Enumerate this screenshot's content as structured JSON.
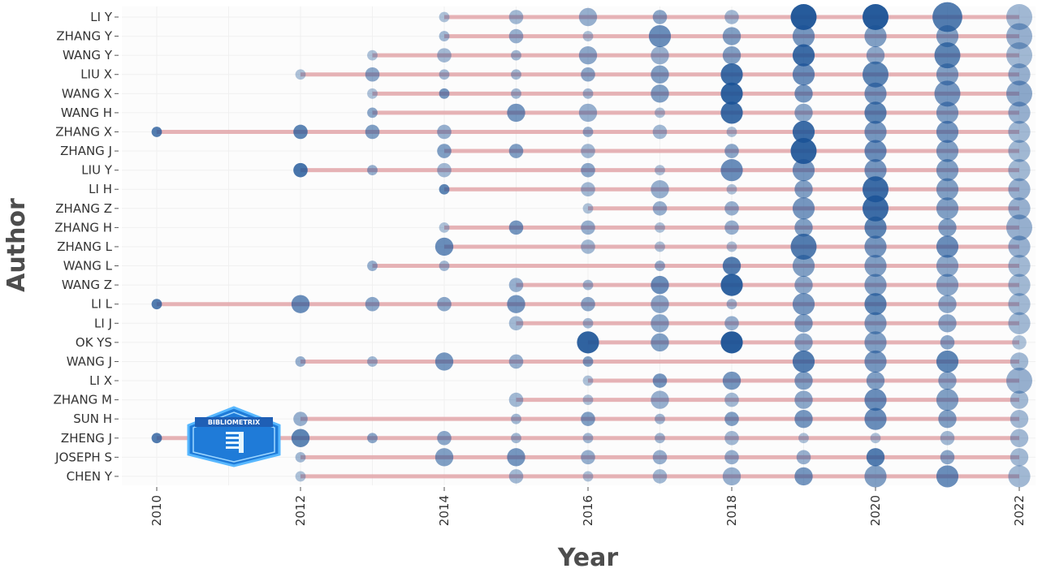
{
  "chart_data": {
    "type": "scatter",
    "title": "",
    "xlabel": "Year",
    "ylabel": "Author",
    "xlim": [
      2010,
      2022
    ],
    "x_ticks": [
      2010,
      2012,
      2014,
      2016,
      2018,
      2020,
      2022
    ],
    "authors": [
      "LI Y",
      "ZHANG Y",
      "WANG Y",
      "LIU X",
      "WANG X",
      "WANG H",
      "ZHANG X",
      "ZHANG J",
      "LIU Y",
      "LI H",
      "ZHANG Z",
      "ZHANG H",
      "ZHANG L",
      "WANG L",
      "WANG Z",
      "LI L",
      "LI J",
      "OK YS",
      "WANG J",
      "LI X",
      "ZHANG M",
      "SUN H",
      "ZHENG J",
      "JOSEPH S",
      "CHEN Y"
    ],
    "timelines": [
      {
        "author": "LI Y",
        "start": 2014,
        "end": 2022
      },
      {
        "author": "ZHANG Y",
        "start": 2014,
        "end": 2022
      },
      {
        "author": "WANG Y",
        "start": 2013,
        "end": 2022
      },
      {
        "author": "LIU X",
        "start": 2012,
        "end": 2022
      },
      {
        "author": "WANG X",
        "start": 2013,
        "end": 2022
      },
      {
        "author": "WANG H",
        "start": 2013,
        "end": 2022
      },
      {
        "author": "ZHANG X",
        "start": 2010,
        "end": 2022
      },
      {
        "author": "ZHANG J",
        "start": 2014,
        "end": 2022
      },
      {
        "author": "LIU Y",
        "start": 2012,
        "end": 2022
      },
      {
        "author": "LI H",
        "start": 2014,
        "end": 2022
      },
      {
        "author": "ZHANG Z",
        "start": 2016,
        "end": 2022
      },
      {
        "author": "ZHANG H",
        "start": 2014,
        "end": 2022
      },
      {
        "author": "ZHANG L",
        "start": 2014,
        "end": 2022
      },
      {
        "author": "WANG L",
        "start": 2013,
        "end": 2022
      },
      {
        "author": "WANG Z",
        "start": 2015,
        "end": 2022
      },
      {
        "author": "LI L",
        "start": 2010,
        "end": 2022
      },
      {
        "author": "LI J",
        "start": 2015,
        "end": 2022
      },
      {
        "author": "OK YS",
        "start": 2016,
        "end": 2022
      },
      {
        "author": "WANG J",
        "start": 2012,
        "end": 2022
      },
      {
        "author": "LI X",
        "start": 2016,
        "end": 2022
      },
      {
        "author": "ZHANG M",
        "start": 2015,
        "end": 2022
      },
      {
        "author": "SUN H",
        "start": 2012,
        "end": 2022
      },
      {
        "author": "ZHENG J",
        "start": 2010,
        "end": 2022
      },
      {
        "author": "JOSEPH S",
        "start": 2012,
        "end": 2022
      },
      {
        "author": "CHEN Y",
        "start": 2012,
        "end": 2022
      }
    ],
    "points": [
      [
        "LI Y",
        2014,
        1,
        0.35
      ],
      [
        "LI Y",
        2015,
        2,
        0.4
      ],
      [
        "LI Y",
        2016,
        3,
        0.45
      ],
      [
        "LI Y",
        2017,
        2,
        0.5
      ],
      [
        "LI Y",
        2018,
        2,
        0.4
      ],
      [
        "LI Y",
        2019,
        5,
        0.95
      ],
      [
        "LI Y",
        2020,
        5,
        0.95
      ],
      [
        "LI Y",
        2021,
        6,
        0.75
      ],
      [
        "LI Y",
        2022,
        5,
        0.4
      ],
      [
        "ZHANG Y",
        2014,
        1,
        0.4
      ],
      [
        "ZHANG Y",
        2015,
        2,
        0.45
      ],
      [
        "ZHANG Y",
        2016,
        1,
        0.35
      ],
      [
        "ZHANG Y",
        2017,
        4,
        0.65
      ],
      [
        "ZHANG Y",
        2018,
        3,
        0.55
      ],
      [
        "ZHANG Y",
        2019,
        4,
        0.6
      ],
      [
        "ZHANG Y",
        2020,
        4,
        0.55
      ],
      [
        "ZHANG Y",
        2021,
        4,
        0.55
      ],
      [
        "ZHANG Y",
        2022,
        5,
        0.45
      ],
      [
        "WANG Y",
        2013,
        1,
        0.35
      ],
      [
        "WANG Y",
        2014,
        2,
        0.4
      ],
      [
        "WANG Y",
        2015,
        1,
        0.4
      ],
      [
        "WANG Y",
        2016,
        3,
        0.5
      ],
      [
        "WANG Y",
        2017,
        3,
        0.45
      ],
      [
        "WANG Y",
        2018,
        3,
        0.55
      ],
      [
        "WANG Y",
        2019,
        4,
        0.85
      ],
      [
        "WANG Y",
        2020,
        3,
        0.5
      ],
      [
        "WANG Y",
        2021,
        5,
        0.7
      ],
      [
        "WANG Y",
        2022,
        5,
        0.4
      ],
      [
        "LIU X",
        2012,
        1,
        0.35
      ],
      [
        "LIU X",
        2013,
        2,
        0.5
      ],
      [
        "LIU X",
        2014,
        1,
        0.4
      ],
      [
        "LIU X",
        2015,
        1,
        0.4
      ],
      [
        "LIU X",
        2016,
        2,
        0.5
      ],
      [
        "LIU X",
        2017,
        3,
        0.55
      ],
      [
        "LIU X",
        2018,
        4,
        0.85
      ],
      [
        "LIU X",
        2019,
        4,
        0.65
      ],
      [
        "LIU X",
        2020,
        5,
        0.7
      ],
      [
        "LIU X",
        2021,
        4,
        0.55
      ],
      [
        "LIU X",
        2022,
        4,
        0.45
      ],
      [
        "WANG X",
        2013,
        1,
        0.35
      ],
      [
        "WANG X",
        2014,
        1,
        0.6
      ],
      [
        "WANG X",
        2015,
        1,
        0.4
      ],
      [
        "WANG X",
        2016,
        1,
        0.4
      ],
      [
        "WANG X",
        2017,
        3,
        0.55
      ],
      [
        "WANG X",
        2018,
        4,
        0.9
      ],
      [
        "WANG X",
        2019,
        3,
        0.6
      ],
      [
        "WANG X",
        2020,
        4,
        0.6
      ],
      [
        "WANG X",
        2021,
        5,
        0.6
      ],
      [
        "WANG X",
        2022,
        5,
        0.5
      ],
      [
        "WANG H",
        2013,
        1,
        0.5
      ],
      [
        "WANG H",
        2015,
        3,
        0.6
      ],
      [
        "WANG H",
        2016,
        3,
        0.45
      ],
      [
        "WANG H",
        2017,
        1,
        0.35
      ],
      [
        "WANG H",
        2018,
        4,
        0.85
      ],
      [
        "WANG H",
        2019,
        3,
        0.5
      ],
      [
        "WANG H",
        2020,
        4,
        0.7
      ],
      [
        "WANG H",
        2021,
        4,
        0.55
      ],
      [
        "WANG H",
        2022,
        4,
        0.45
      ],
      [
        "ZHANG X",
        2010,
        1,
        0.75
      ],
      [
        "ZHANG X",
        2012,
        2,
        0.7
      ],
      [
        "ZHANG X",
        2013,
        2,
        0.55
      ],
      [
        "ZHANG X",
        2014,
        2,
        0.45
      ],
      [
        "ZHANG X",
        2016,
        1,
        0.45
      ],
      [
        "ZHANG X",
        2017,
        2,
        0.4
      ],
      [
        "ZHANG X",
        2018,
        1,
        0.35
      ],
      [
        "ZHANG X",
        2019,
        4,
        0.85
      ],
      [
        "ZHANG X",
        2020,
        4,
        0.6
      ],
      [
        "ZHANG X",
        2021,
        4,
        0.6
      ],
      [
        "ZHANG X",
        2022,
        4,
        0.4
      ],
      [
        "ZHANG J",
        2014,
        2,
        0.55
      ],
      [
        "ZHANG J",
        2015,
        2,
        0.55
      ],
      [
        "ZHANG J",
        2016,
        2,
        0.4
      ],
      [
        "ZHANG J",
        2018,
        2,
        0.5
      ],
      [
        "ZHANG J",
        2019,
        5,
        0.9
      ],
      [
        "ZHANG J",
        2020,
        4,
        0.65
      ],
      [
        "ZHANG J",
        2021,
        4,
        0.55
      ],
      [
        "ZHANG J",
        2022,
        4,
        0.4
      ],
      [
        "LIU Y",
        2012,
        2,
        0.8
      ],
      [
        "LIU Y",
        2013,
        1,
        0.45
      ],
      [
        "LIU Y",
        2014,
        2,
        0.4
      ],
      [
        "LIU Y",
        2016,
        2,
        0.5
      ],
      [
        "LIU Y",
        2017,
        1,
        0.35
      ],
      [
        "LIU Y",
        2018,
        4,
        0.65
      ],
      [
        "LIU Y",
        2019,
        4,
        0.6
      ],
      [
        "LIU Y",
        2020,
        4,
        0.6
      ],
      [
        "LIU Y",
        2021,
        4,
        0.55
      ],
      [
        "LIU Y",
        2022,
        4,
        0.4
      ],
      [
        "LI H",
        2014,
        1,
        0.7
      ],
      [
        "LI H",
        2016,
        2,
        0.4
      ],
      [
        "LI H",
        2017,
        3,
        0.45
      ],
      [
        "LI H",
        2018,
        1,
        0.35
      ],
      [
        "LI H",
        2019,
        3,
        0.55
      ],
      [
        "LI H",
        2020,
        5,
        0.85
      ],
      [
        "LI H",
        2021,
        4,
        0.55
      ],
      [
        "LI H",
        2022,
        4,
        0.45
      ],
      [
        "ZHANG Z",
        2016,
        1,
        0.35
      ],
      [
        "ZHANG Z",
        2017,
        2,
        0.45
      ],
      [
        "ZHANG Z",
        2018,
        2,
        0.45
      ],
      [
        "ZHANG Z",
        2019,
        4,
        0.6
      ],
      [
        "ZHANG Z",
        2020,
        5,
        0.85
      ],
      [
        "ZHANG Z",
        2021,
        4,
        0.55
      ],
      [
        "ZHANG Z",
        2022,
        4,
        0.45
      ],
      [
        "ZHANG H",
        2014,
        1,
        0.35
      ],
      [
        "ZHANG H",
        2015,
        2,
        0.6
      ],
      [
        "ZHANG H",
        2016,
        2,
        0.45
      ],
      [
        "ZHANG H",
        2017,
        1,
        0.35
      ],
      [
        "ZHANG H",
        2018,
        2,
        0.45
      ],
      [
        "ZHANG H",
        2019,
        3,
        0.55
      ],
      [
        "ZHANG H",
        2020,
        4,
        0.7
      ],
      [
        "ZHANG H",
        2021,
        3,
        0.55
      ],
      [
        "ZHANG H",
        2022,
        5,
        0.45
      ],
      [
        "ZHANG L",
        2014,
        3,
        0.65
      ],
      [
        "ZHANG L",
        2016,
        2,
        0.4
      ],
      [
        "ZHANG L",
        2017,
        1,
        0.35
      ],
      [
        "ZHANG L",
        2018,
        1,
        0.35
      ],
      [
        "ZHANG L",
        2019,
        5,
        0.75
      ],
      [
        "ZHANG L",
        2020,
        4,
        0.6
      ],
      [
        "ZHANG L",
        2021,
        4,
        0.65
      ],
      [
        "ZHANG L",
        2022,
        4,
        0.45
      ],
      [
        "WANG L",
        2013,
        1,
        0.45
      ],
      [
        "WANG L",
        2014,
        1,
        0.4
      ],
      [
        "WANG L",
        2017,
        1,
        0.45
      ],
      [
        "WANG L",
        2018,
        3,
        0.75
      ],
      [
        "WANG L",
        2019,
        4,
        0.55
      ],
      [
        "WANG L",
        2020,
        4,
        0.55
      ],
      [
        "WANG L",
        2021,
        4,
        0.5
      ],
      [
        "WANG L",
        2022,
        4,
        0.4
      ],
      [
        "WANG Z",
        2015,
        2,
        0.45
      ],
      [
        "WANG Z",
        2016,
        1,
        0.4
      ],
      [
        "WANG Z",
        2017,
        3,
        0.65
      ],
      [
        "WANG Z",
        2018,
        4,
        0.9
      ],
      [
        "WANG Z",
        2019,
        3,
        0.5
      ],
      [
        "WANG Z",
        2020,
        4,
        0.55
      ],
      [
        "WANG Z",
        2021,
        4,
        0.5
      ],
      [
        "WANG Z",
        2022,
        4,
        0.4
      ],
      [
        "LI L",
        2010,
        1,
        0.75
      ],
      [
        "LI L",
        2012,
        3,
        0.65
      ],
      [
        "LI L",
        2013,
        2,
        0.5
      ],
      [
        "LI L",
        2014,
        2,
        0.5
      ],
      [
        "LI L",
        2015,
        3,
        0.6
      ],
      [
        "LI L",
        2016,
        2,
        0.5
      ],
      [
        "LI L",
        2017,
        3,
        0.5
      ],
      [
        "LI L",
        2018,
        1,
        0.4
      ],
      [
        "LI L",
        2019,
        4,
        0.6
      ],
      [
        "LI L",
        2020,
        4,
        0.7
      ],
      [
        "LI L",
        2021,
        3,
        0.5
      ],
      [
        "LI L",
        2022,
        4,
        0.4
      ],
      [
        "LI J",
        2015,
        2,
        0.4
      ],
      [
        "LI J",
        2016,
        1,
        0.4
      ],
      [
        "LI J",
        2017,
        3,
        0.5
      ],
      [
        "LI J",
        2018,
        2,
        0.45
      ],
      [
        "LI J",
        2019,
        3,
        0.55
      ],
      [
        "LI J",
        2020,
        4,
        0.55
      ],
      [
        "LI J",
        2021,
        3,
        0.5
      ],
      [
        "LI J",
        2022,
        4,
        0.4
      ],
      [
        "OK YS",
        2016,
        4,
        0.9
      ],
      [
        "OK YS",
        2017,
        3,
        0.55
      ],
      [
        "OK YS",
        2018,
        4,
        0.95
      ],
      [
        "OK YS",
        2019,
        3,
        0.5
      ],
      [
        "OK YS",
        2020,
        4,
        0.55
      ],
      [
        "OK YS",
        2021,
        2,
        0.5
      ],
      [
        "OK YS",
        2022,
        2,
        0.35
      ],
      [
        "WANG J",
        2012,
        1,
        0.45
      ],
      [
        "WANG J",
        2013,
        1,
        0.4
      ],
      [
        "WANG J",
        2014,
        3,
        0.6
      ],
      [
        "WANG J",
        2015,
        2,
        0.45
      ],
      [
        "WANG J",
        2016,
        1,
        0.55
      ],
      [
        "WANG J",
        2019,
        4,
        0.75
      ],
      [
        "WANG J",
        2020,
        4,
        0.6
      ],
      [
        "WANG J",
        2021,
        4,
        0.7
      ],
      [
        "WANG J",
        2022,
        3,
        0.4
      ],
      [
        "LI X",
        2016,
        1,
        0.35
      ],
      [
        "LI X",
        2017,
        2,
        0.6
      ],
      [
        "LI X",
        2018,
        3,
        0.6
      ],
      [
        "LI X",
        2019,
        3,
        0.55
      ],
      [
        "LI X",
        2020,
        3,
        0.55
      ],
      [
        "LI X",
        2021,
        3,
        0.5
      ],
      [
        "LI X",
        2022,
        5,
        0.45
      ],
      [
        "ZHANG M",
        2015,
        2,
        0.4
      ],
      [
        "ZHANG M",
        2016,
        1,
        0.35
      ],
      [
        "ZHANG M",
        2017,
        3,
        0.45
      ],
      [
        "ZHANG M",
        2018,
        2,
        0.4
      ],
      [
        "ZHANG M",
        2019,
        3,
        0.5
      ],
      [
        "ZHANG M",
        2020,
        4,
        0.65
      ],
      [
        "ZHANG M",
        2021,
        4,
        0.55
      ],
      [
        "ZHANG M",
        2022,
        3,
        0.4
      ],
      [
        "SUN H",
        2012,
        2,
        0.45
      ],
      [
        "SUN H",
        2015,
        1,
        0.4
      ],
      [
        "SUN H",
        2016,
        2,
        0.55
      ],
      [
        "SUN H",
        2017,
        1,
        0.4
      ],
      [
        "SUN H",
        2018,
        2,
        0.55
      ],
      [
        "SUN H",
        2019,
        3,
        0.6
      ],
      [
        "SUN H",
        2020,
        4,
        0.65
      ],
      [
        "SUN H",
        2021,
        3,
        0.55
      ],
      [
        "SUN H",
        2022,
        3,
        0.4
      ],
      [
        "ZHENG J",
        2010,
        1,
        0.75
      ],
      [
        "ZHENG J",
        2012,
        3,
        0.7
      ],
      [
        "ZHENG J",
        2013,
        1,
        0.5
      ],
      [
        "ZHENG J",
        2014,
        2,
        0.5
      ],
      [
        "ZHENG J",
        2015,
        1,
        0.4
      ],
      [
        "ZHENG J",
        2016,
        1,
        0.4
      ],
      [
        "ZHENG J",
        2017,
        1,
        0.4
      ],
      [
        "ZHENG J",
        2018,
        2,
        0.4
      ],
      [
        "ZHENG J",
        2019,
        1,
        0.35
      ],
      [
        "ZHENG J",
        2020,
        1,
        0.35
      ],
      [
        "ZHENG J",
        2021,
        2,
        0.4
      ],
      [
        "ZHENG J",
        2022,
        3,
        0.4
      ],
      [
        "JOSEPH S",
        2012,
        1,
        0.4
      ],
      [
        "JOSEPH S",
        2014,
        3,
        0.55
      ],
      [
        "JOSEPH S",
        2015,
        3,
        0.6
      ],
      [
        "JOSEPH S",
        2016,
        2,
        0.45
      ],
      [
        "JOSEPH S",
        2017,
        2,
        0.45
      ],
      [
        "JOSEPH S",
        2018,
        2,
        0.45
      ],
      [
        "JOSEPH S",
        2019,
        2,
        0.45
      ],
      [
        "JOSEPH S",
        2020,
        3,
        0.75
      ],
      [
        "JOSEPH S",
        2021,
        2,
        0.5
      ],
      [
        "JOSEPH S",
        2022,
        3,
        0.4
      ],
      [
        "CHEN Y",
        2012,
        1,
        0.35
      ],
      [
        "CHEN Y",
        2015,
        2,
        0.4
      ],
      [
        "CHEN Y",
        2016,
        1,
        0.35
      ],
      [
        "CHEN Y",
        2017,
        2,
        0.4
      ],
      [
        "CHEN Y",
        2018,
        3,
        0.45
      ],
      [
        "CHEN Y",
        2019,
        3,
        0.6
      ],
      [
        "CHEN Y",
        2020,
        4,
        0.55
      ],
      [
        "CHEN Y",
        2021,
        4,
        0.65
      ],
      [
        "CHEN Y",
        2022,
        4,
        0.4
      ]
    ],
    "grid": true,
    "legend": "none"
  },
  "logo": {
    "text": "BIBLIOMETRIX"
  },
  "colors": {
    "bubble": "#1a5296",
    "timeline": "#e2a6a9",
    "background": "#ffffff",
    "grid": "#f0f0f0",
    "logo_blue": "#1f7bd8",
    "logo_light": "#4fc3f7"
  }
}
